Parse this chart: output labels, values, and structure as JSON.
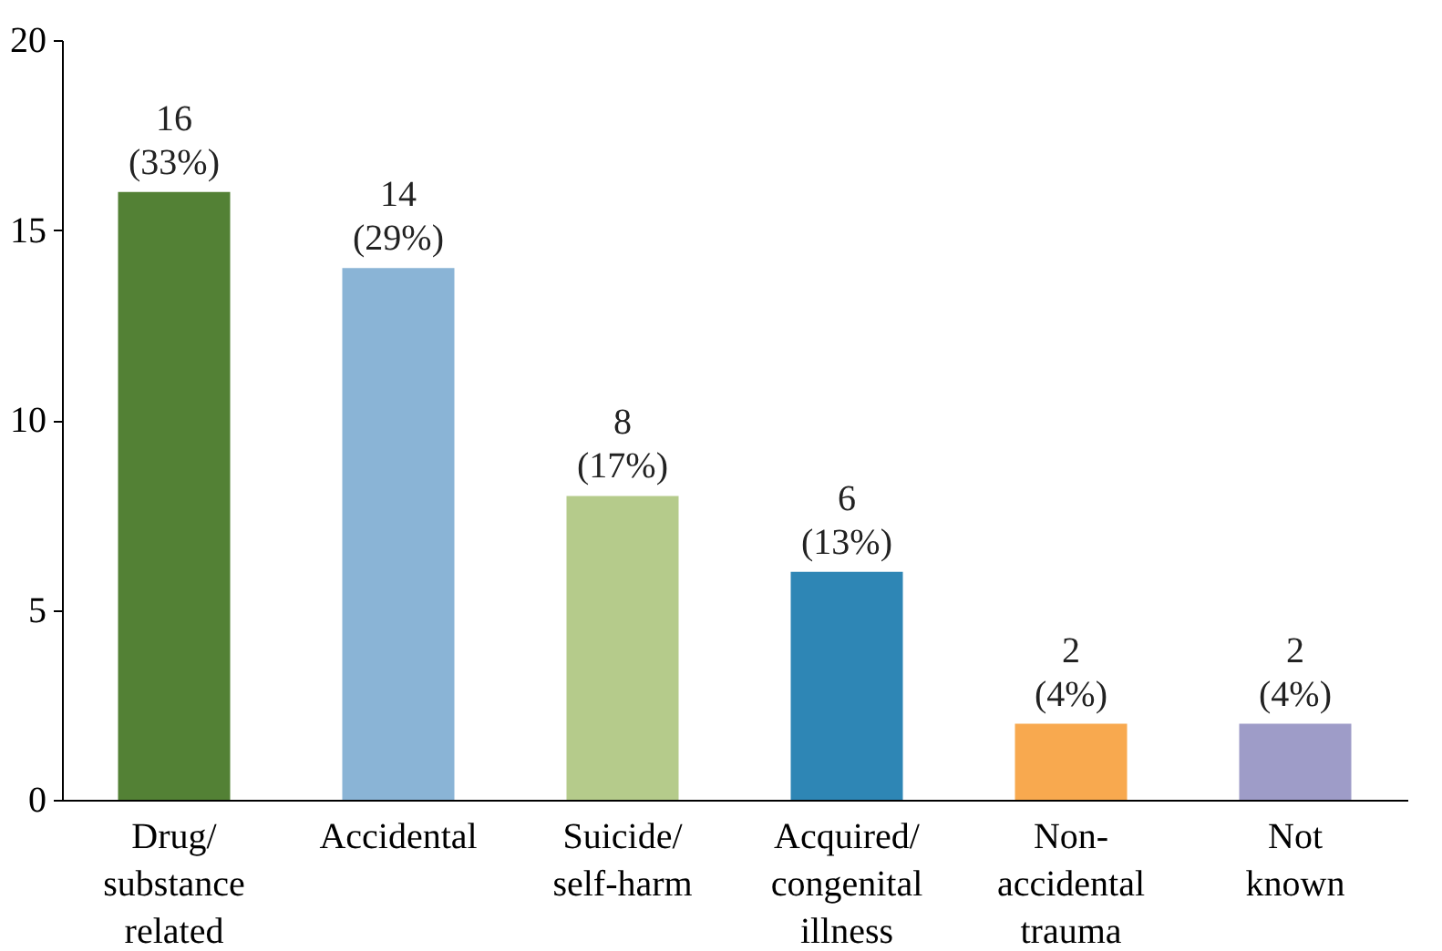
{
  "chart_data": {
    "type": "bar",
    "categories": [
      "Drug/\nsubstance\nrelated",
      "Accidental",
      "Suicide/\nself-harm",
      "Acquired/\ncongenital\nillness",
      "Non-\naccidental\ntrauma",
      "Not\nknown"
    ],
    "values": [
      16,
      14,
      8,
      6,
      2,
      2
    ],
    "colors": [
      "#538135",
      "#8ab4d6",
      "#b5cb8b",
      "#2e86b5",
      "#f8a94f",
      "#9e9cc8"
    ],
    "value_labels": [
      "16\n(33%)",
      "14\n(29%)",
      "8\n(17%)",
      "6\n(13%)",
      "2\n(4%)",
      "2\n(4%)"
    ],
    "ylim": [
      0,
      20
    ],
    "yticks": [
      0,
      5,
      10,
      15,
      20
    ],
    "grid": false
  }
}
